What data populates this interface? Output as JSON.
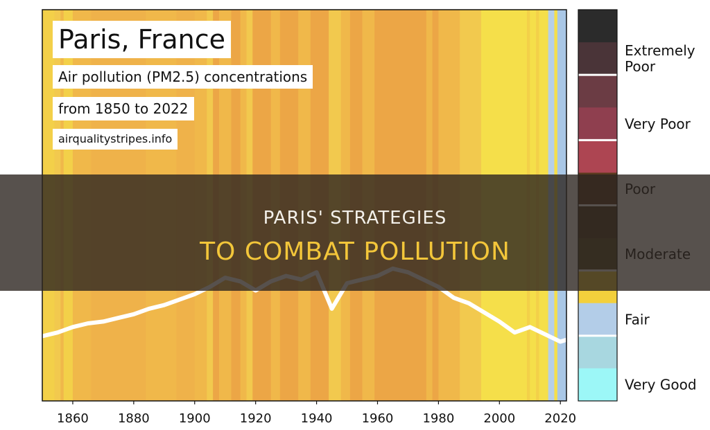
{
  "banner": {
    "line1": "PARIS' STRATEGIES",
    "line2": "TO COMBAT POLLUTION"
  },
  "colors": {
    "banner_line1": "#f3f0ea",
    "banner_line2": "#f3c63a",
    "banner_background": "#2d2620"
  },
  "chart_data": {
    "type": "area",
    "title": "Paris, France",
    "subtitle_lines": [
      "Air pollution (PM2.5) concentrations",
      "from 1850 to 2022"
    ],
    "source": "airqualitystripes.info",
    "xlim": [
      1850,
      2022
    ],
    "x_ticks": [
      1860,
      1880,
      1900,
      1920,
      1940,
      1960,
      1980,
      2000,
      2020
    ],
    "grid": false,
    "stripes": [
      {
        "from": 1850,
        "to": 1854,
        "color": "#f3d049"
      },
      {
        "from": 1854,
        "to": 1856,
        "color": "#f2c94e"
      },
      {
        "from": 1856,
        "to": 1857,
        "color": "#f0b84a"
      },
      {
        "from": 1857,
        "to": 1860,
        "color": "#f3d049"
      },
      {
        "from": 1860,
        "to": 1866,
        "color": "#f0b84a"
      },
      {
        "from": 1866,
        "to": 1884,
        "color": "#efb24a"
      },
      {
        "from": 1884,
        "to": 1894,
        "color": "#f0b84a"
      },
      {
        "from": 1894,
        "to": 1900,
        "color": "#efb24a"
      },
      {
        "from": 1900,
        "to": 1904,
        "color": "#f0b84a"
      },
      {
        "from": 1904,
        "to": 1906,
        "color": "#f2c94e"
      },
      {
        "from": 1906,
        "to": 1908,
        "color": "#eca646"
      },
      {
        "from": 1908,
        "to": 1912,
        "color": "#f0b84a"
      },
      {
        "from": 1912,
        "to": 1915,
        "color": "#eca646"
      },
      {
        "from": 1915,
        "to": 1917,
        "color": "#f0b84a"
      },
      {
        "from": 1917,
        "to": 1919,
        "color": "#f2c94e"
      },
      {
        "from": 1919,
        "to": 1925,
        "color": "#eca646"
      },
      {
        "from": 1925,
        "to": 1928,
        "color": "#f0b84a"
      },
      {
        "from": 1928,
        "to": 1934,
        "color": "#eca646"
      },
      {
        "from": 1934,
        "to": 1938,
        "color": "#f0b84a"
      },
      {
        "from": 1938,
        "to": 1944,
        "color": "#eca646"
      },
      {
        "from": 1944,
        "to": 1948,
        "color": "#f2c94e"
      },
      {
        "from": 1948,
        "to": 1951,
        "color": "#f0b84a"
      },
      {
        "from": 1951,
        "to": 1955,
        "color": "#eca646"
      },
      {
        "from": 1955,
        "to": 1959,
        "color": "#f0b84a"
      },
      {
        "from": 1959,
        "to": 1976,
        "color": "#eca646"
      },
      {
        "from": 1976,
        "to": 1978,
        "color": "#f0b84a"
      },
      {
        "from": 1978,
        "to": 1980,
        "color": "#eca646"
      },
      {
        "from": 1980,
        "to": 1987,
        "color": "#f0b84a"
      },
      {
        "from": 1987,
        "to": 1994,
        "color": "#f2c94e"
      },
      {
        "from": 1994,
        "to": 2009,
        "color": "#f5df4a"
      },
      {
        "from": 2009,
        "to": 2010,
        "color": "#f3d049"
      },
      {
        "from": 2010,
        "to": 2012,
        "color": "#f5df4a"
      },
      {
        "from": 2012,
        "to": 2013,
        "color": "#f3d049"
      },
      {
        "from": 2013,
        "to": 2016,
        "color": "#f5df4a"
      },
      {
        "from": 2016,
        "to": 2018,
        "color": "#b6cfe8"
      },
      {
        "from": 2018,
        "to": 2019,
        "color": "#f5df4a"
      },
      {
        "from": 2019,
        "to": 2022,
        "color": "#a9c7e6"
      }
    ],
    "trend_line": {
      "color": "#ffffff",
      "x": [
        1850,
        1855,
        1860,
        1865,
        1870,
        1875,
        1880,
        1885,
        1890,
        1895,
        1900,
        1905,
        1910,
        1915,
        1920,
        1925,
        1930,
        1935,
        1940,
        1945,
        1950,
        1955,
        1960,
        1965,
        1970,
        1975,
        1980,
        1985,
        1990,
        1995,
        2000,
        2005,
        2010,
        2015,
        2020,
        2022
      ],
      "y": [
        0.15,
        0.17,
        0.2,
        0.22,
        0.23,
        0.25,
        0.27,
        0.3,
        0.32,
        0.35,
        0.38,
        0.42,
        0.47,
        0.45,
        0.4,
        0.45,
        0.48,
        0.46,
        0.5,
        0.3,
        0.44,
        0.46,
        0.48,
        0.52,
        0.5,
        0.46,
        0.42,
        0.36,
        0.33,
        0.28,
        0.23,
        0.17,
        0.2,
        0.16,
        0.12,
        0.13
      ]
    },
    "legend": {
      "placement": "right",
      "bands": [
        {
          "label": "",
          "color": "#2b2b2b"
        },
        {
          "label": "Extremely Poor",
          "color": "#4a3438"
        },
        {
          "label": "",
          "color": "#6b3c44"
        },
        {
          "label": "Very Poor",
          "color": "#8f3f4f"
        },
        {
          "label": "",
          "color": "#ad4552"
        },
        {
          "label": "Poor",
          "color": "#5a3a1e"
        },
        {
          "label": "",
          "color": "#4c3a20"
        },
        {
          "label": "Moderate",
          "color": "#574a23"
        },
        {
          "label": "",
          "color": "#f3d03c"
        },
        {
          "label": "Fair",
          "color": "#b3cde8"
        },
        {
          "label": "",
          "color": "#a8d7e0"
        },
        {
          "label": "Very Good",
          "color": "#9cf7f7"
        }
      ]
    }
  }
}
